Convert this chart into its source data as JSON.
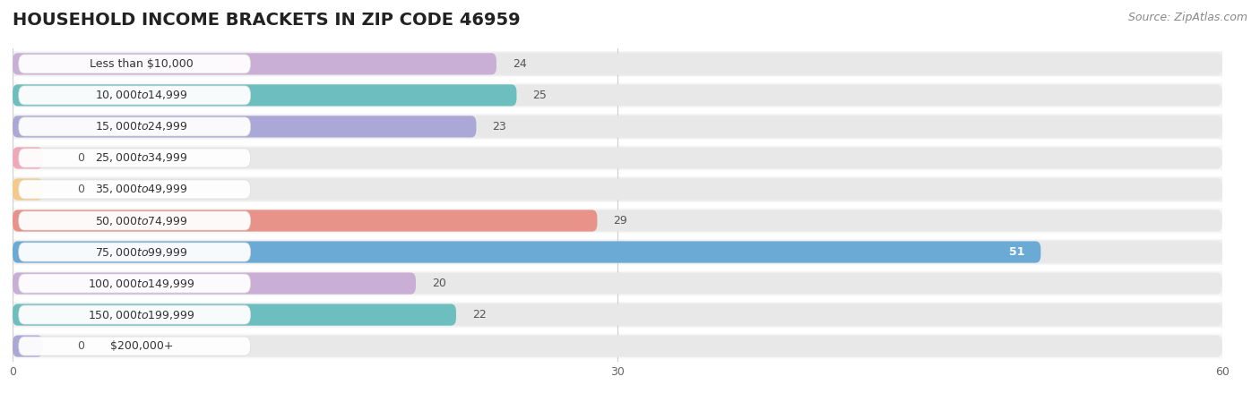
{
  "title": "HOUSEHOLD INCOME BRACKETS IN ZIP CODE 46959",
  "source": "Source: ZipAtlas.com",
  "categories": [
    "Less than $10,000",
    "$10,000 to $14,999",
    "$15,000 to $24,999",
    "$25,000 to $34,999",
    "$35,000 to $49,999",
    "$50,000 to $74,999",
    "$75,000 to $99,999",
    "$100,000 to $149,999",
    "$150,000 to $199,999",
    "$200,000+"
  ],
  "values": [
    24,
    25,
    23,
    0,
    0,
    29,
    51,
    20,
    22,
    0
  ],
  "colors": [
    "#c9aed6",
    "#6dbfbf",
    "#aba8d8",
    "#f0a8b8",
    "#f5c98a",
    "#e8938a",
    "#6aaad4",
    "#c9aed6",
    "#6dbfbf",
    "#aba8d8"
  ],
  "xlim": [
    0,
    60
  ],
  "xticks": [
    0,
    30,
    60
  ],
  "background_color": "#f7f7f7",
  "bar_bg_color": "#e8e8e8",
  "row_bg_colors": [
    "#f0f0f0",
    "#f7f7f7"
  ],
  "title_fontsize": 14,
  "source_fontsize": 9,
  "label_fontsize": 9,
  "value_fontsize": 9
}
